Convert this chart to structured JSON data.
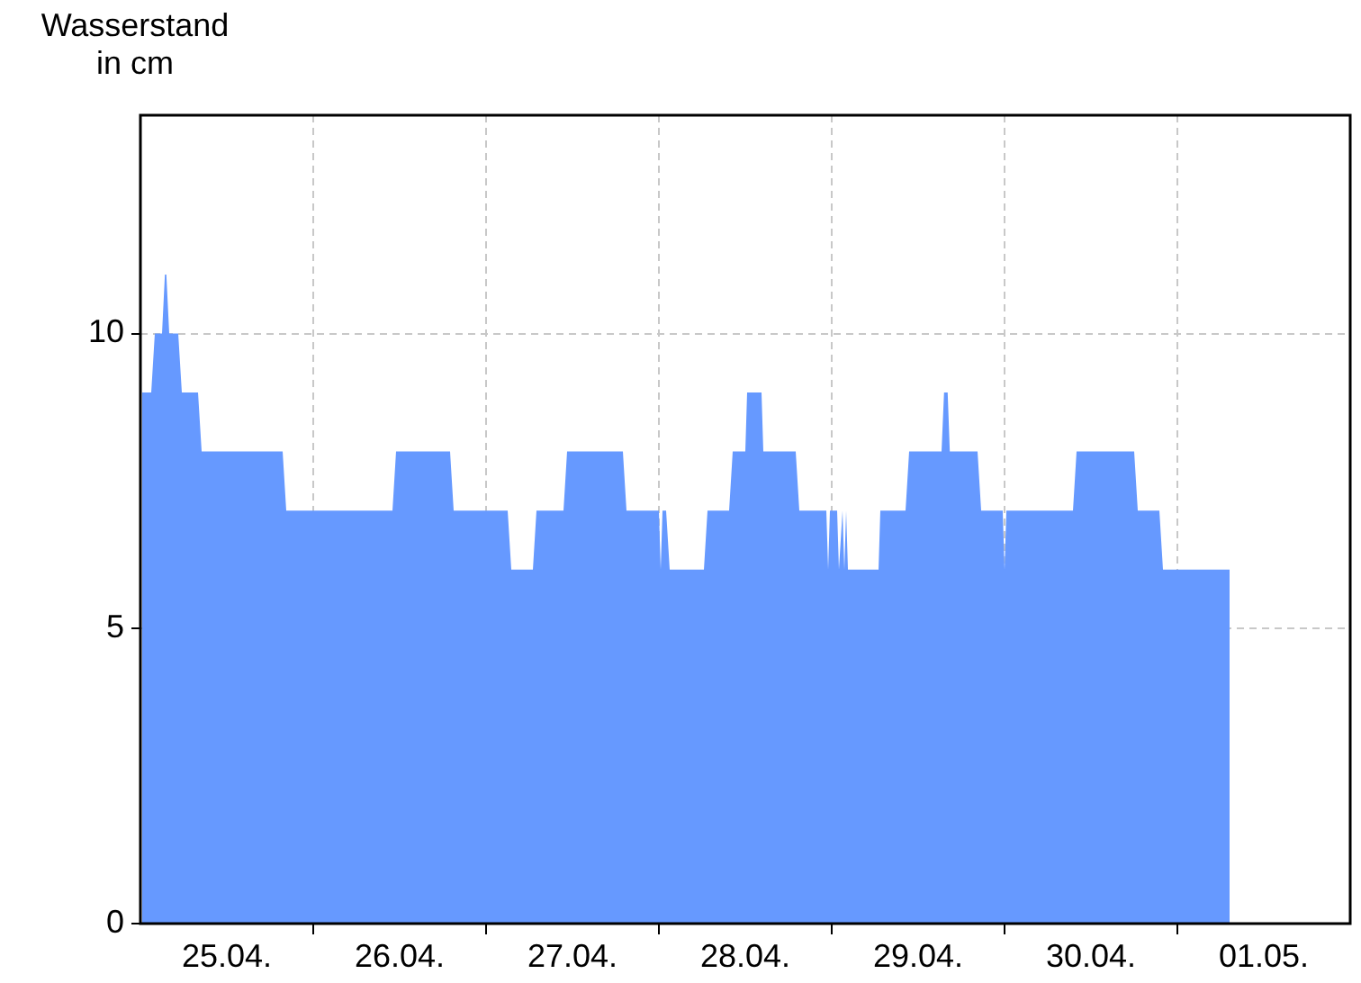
{
  "chart_data": {
    "type": "area",
    "ylabel": "Wasserstand\nin cm",
    "x": [
      "--04-25T00:15",
      "--04-25T01:30",
      "--04-25T02:00",
      "--04-25T03:00",
      "--04-25T03:24",
      "--04-25T03:36",
      "--04-25T04:00",
      "--04-25T05:15",
      "--04-25T05:45",
      "--04-25T08:00",
      "--04-25T08:30",
      "--04-25T19:45",
      "--04-25T20:15",
      "--04-26T11:00",
      "--04-26T11:30",
      "--04-26T19:00",
      "--04-26T19:30",
      "--04-27T03:00",
      "--04-27T03:30",
      "--04-27T06:30",
      "--04-27T07:00",
      "--04-27T10:45",
      "--04-27T11:15",
      "--04-27T19:00",
      "--04-27T19:30",
      "--04-28T00:00",
      "--04-28T00:15",
      "--04-28T00:30",
      "--04-28T01:00",
      "--04-28T01:30",
      "--04-28T06:15",
      "--04-28T06:45",
      "--04-28T09:45",
      "--04-28T10:15",
      "--04-28T12:00",
      "--04-28T12:15",
      "--04-28T14:15",
      "--04-28T14:30",
      "--04-28T19:00",
      "--04-28T19:30",
      "--04-28T23:15",
      "--04-28T23:30",
      "--04-28T23:45",
      "--04-29T00:45",
      "--04-29T01:00",
      "--04-29T01:30",
      "--04-29T01:45",
      "--04-29T02:00",
      "--04-29T02:15",
      "--04-29T06:30",
      "--04-29T06:45",
      "--04-29T10:15",
      "--04-29T10:45",
      "--04-29T15:15",
      "--04-29T15:36",
      "--04-29T16:06",
      "--04-29T16:24",
      "--04-29T20:15",
      "--04-29T20:45",
      "--04-29T23:45",
      "--04-30T00:00",
      "--04-30T00:15",
      "--04-30T09:30",
      "--04-30T10:00",
      "--04-30T18:00",
      "--04-30T18:30",
      "--04-30T21:30",
      "--04-30T22:00",
      "--05-01T07:15"
    ],
    "series": [
      {
        "color": "#6699ff",
        "values": [
          9,
          9,
          10,
          10,
          11,
          11,
          10,
          10,
          9,
          9,
          8,
          8,
          7,
          7,
          8,
          8,
          7,
          7,
          6,
          6,
          7,
          7,
          8,
          8,
          7,
          7,
          6,
          7,
          7,
          6,
          6,
          7,
          7,
          8,
          8,
          9,
          9,
          8,
          8,
          7,
          7,
          6,
          7,
          7,
          6,
          7,
          6,
          7,
          6,
          6,
          7,
          7,
          8,
          8,
          9,
          9,
          8,
          8,
          7,
          7,
          6,
          7,
          7,
          8,
          8,
          7,
          7,
          6,
          6
        ]
      }
    ],
    "xlim": [
      "--04-25",
      "--05-02"
    ],
    "xticks": [
      {
        "value": "--04-25T12:00",
        "label": "25.04."
      },
      {
        "value": "--04-26",
        "label": null
      },
      {
        "value": "--04-26T12:00",
        "label": "26.04."
      },
      {
        "value": "--04-27",
        "label": null
      },
      {
        "value": "--04-27T12:00",
        "label": "27.04."
      },
      {
        "value": "--04-28",
        "label": null
      },
      {
        "value": "--04-28T12:00",
        "label": "28.04."
      },
      {
        "value": "--04-29",
        "label": null
      },
      {
        "value": "--04-29T12:00",
        "label": "29.04."
      },
      {
        "value": "--04-30",
        "label": null
      },
      {
        "value": "--04-30T12:00",
        "label": "30.04."
      },
      {
        "value": "--05-01",
        "label": null
      },
      {
        "value": "--05-01T12:00",
        "label": "01.05."
      }
    ],
    "ylim": [
      0,
      13.7
    ],
    "yticks": [
      0,
      5,
      10
    ],
    "grid": true,
    "legend": false
  }
}
